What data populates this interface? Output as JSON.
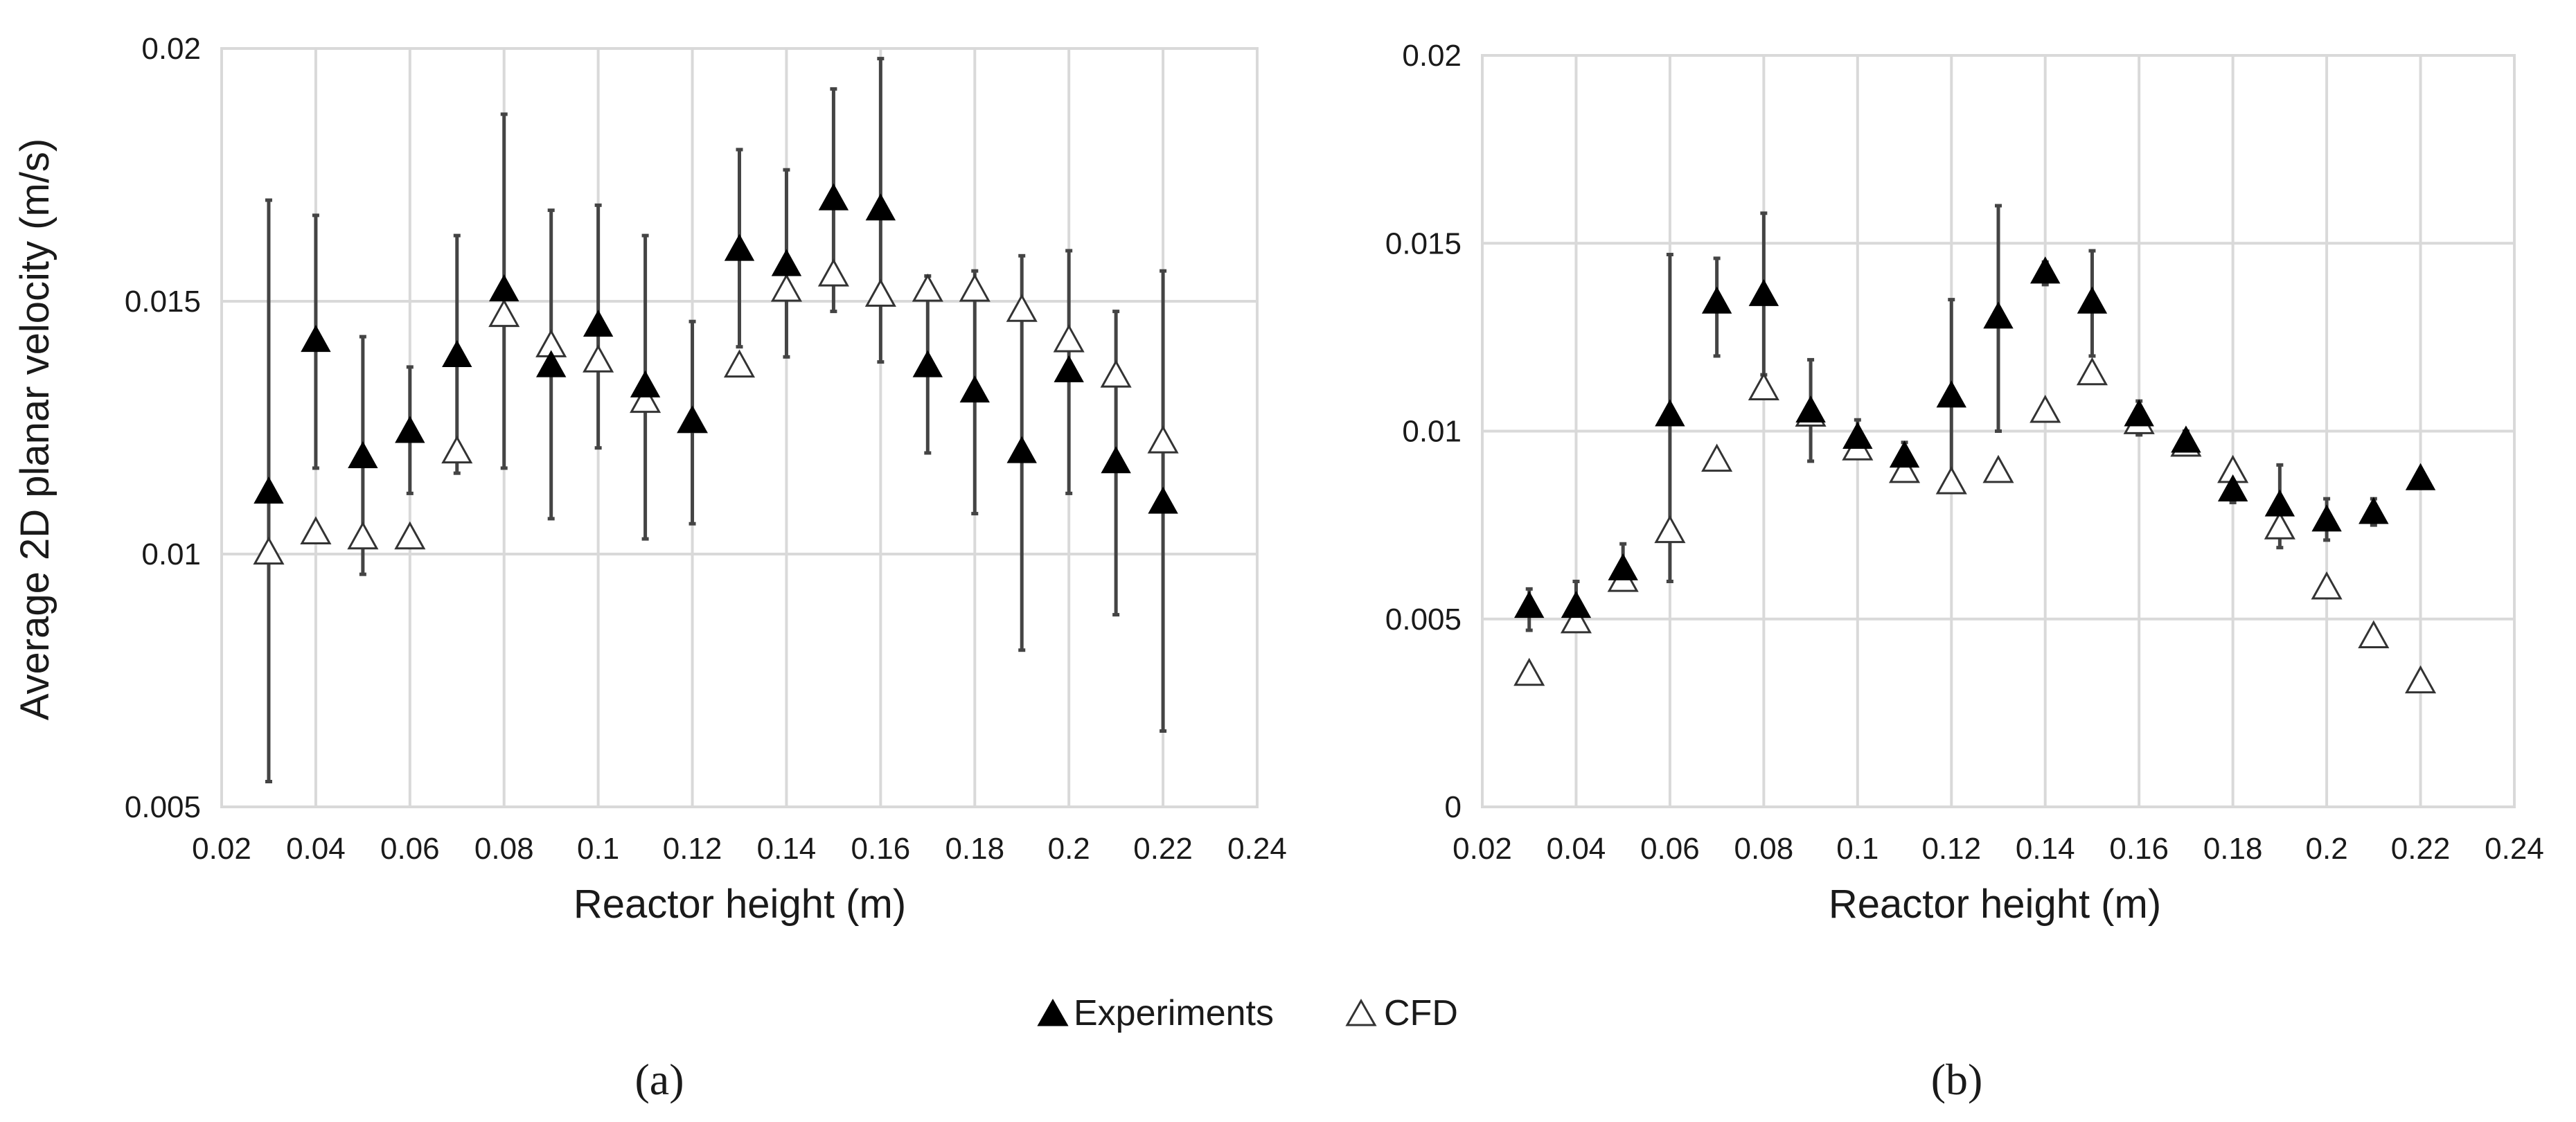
{
  "legend": {
    "experiments": "Experiments",
    "cfd": "CFD"
  },
  "panel_labels": {
    "a": "(a)",
    "b": "(b)"
  },
  "chart_data": [
    {
      "id": "a",
      "type": "scatter",
      "title": "",
      "xlabel": "Reactor height (m)",
      "ylabel": "Average 2D planar velocity (m/s)",
      "xlim": [
        0.02,
        0.24
      ],
      "ylim": [
        0.005,
        0.02
      ],
      "xticks": [
        0.02,
        0.04,
        0.06,
        0.08,
        0.1,
        0.12,
        0.14,
        0.16,
        0.18,
        0.2,
        0.22,
        0.24
      ],
      "xtick_labels": [
        "0.02",
        "0.04",
        "0.06",
        "0.08",
        "0.1",
        "0.12",
        "0.14",
        "0.16",
        "0.18",
        "0.2",
        "0.22",
        "0.24"
      ],
      "yticks": [
        0.005,
        0.01,
        0.015,
        0.02
      ],
      "ytick_labels": [
        "0.005",
        "0.01",
        "0.015",
        "0.02"
      ],
      "grid": true,
      "x": [
        0.03,
        0.04,
        0.05,
        0.06,
        0.07,
        0.08,
        0.09,
        0.1,
        0.11,
        0.12,
        0.13,
        0.14,
        0.15,
        0.16,
        0.17,
        0.18,
        0.19,
        0.2,
        0.21,
        0.22
      ],
      "series": [
        {
          "name": "Experiments",
          "marker": "filled-triangle",
          "values": [
            0.0112,
            0.0142,
            0.0119,
            0.0124,
            0.0139,
            0.0152,
            0.0137,
            0.0145,
            0.0133,
            0.0126,
            0.016,
            0.0157,
            0.017,
            0.0168,
            0.0137,
            0.0132,
            0.012,
            0.0136,
            0.0118,
            0.011
          ],
          "err_low": [
            0.0055,
            0.0117,
            0.0096,
            0.0112,
            0.0116,
            0.0117,
            0.0107,
            0.0121,
            0.0103,
            0.0106,
            0.0141,
            0.0139,
            0.0148,
            0.0138,
            0.012,
            0.0108,
            0.0081,
            0.0112,
            0.0088,
            0.0065
          ],
          "err_high": [
            0.017,
            0.0167,
            0.0143,
            0.0137,
            0.0163,
            0.0187,
            0.0168,
            0.0169,
            0.0163,
            0.0146,
            0.018,
            0.0176,
            0.0192,
            0.0198,
            0.0155,
            0.0156,
            0.0159,
            0.016,
            0.0148,
            0.0156
          ]
        },
        {
          "name": "CFD",
          "marker": "open-triangle",
          "values": [
            0.01,
            0.0104,
            0.0103,
            0.0103,
            0.012,
            0.0147,
            0.0141,
            0.0138,
            0.013,
            0.0126,
            0.0137,
            0.0152,
            0.0155,
            0.0151,
            0.0152,
            0.0152,
            0.0148,
            0.0142,
            0.0135,
            0.0122
          ]
        }
      ]
    },
    {
      "id": "b",
      "type": "scatter",
      "title": "",
      "xlabel": "Reactor height (m)",
      "ylabel": "",
      "xlim": [
        0.02,
        0.24
      ],
      "ylim": [
        0,
        0.02
      ],
      "xticks": [
        0.02,
        0.04,
        0.06,
        0.08,
        0.1,
        0.12,
        0.14,
        0.16,
        0.18,
        0.2,
        0.22,
        0.24
      ],
      "xtick_labels": [
        "0.02",
        "0.04",
        "0.06",
        "0.08",
        "0.1",
        "0.12",
        "0.14",
        "0.16",
        "0.18",
        "0.2",
        "0.22",
        "0.24"
      ],
      "yticks": [
        0,
        0.005,
        0.01,
        0.015,
        0.02
      ],
      "ytick_labels": [
        "0",
        "0.005",
        "0.01",
        "0.015",
        "0.02"
      ],
      "grid": true,
      "x": [
        0.03,
        0.04,
        0.05,
        0.06,
        0.07,
        0.08,
        0.09,
        0.1,
        0.11,
        0.12,
        0.13,
        0.14,
        0.15,
        0.16,
        0.17,
        0.18,
        0.19,
        0.2,
        0.21,
        0.22
      ],
      "series": [
        {
          "name": "Experiments",
          "marker": "filled-triangle",
          "values": [
            0.0053,
            0.0053,
            0.0063,
            0.0104,
            0.0134,
            0.0136,
            0.0105,
            0.0098,
            0.0093,
            0.0109,
            0.013,
            0.0142,
            0.0134,
            0.0104,
            0.0097,
            0.0084,
            0.008,
            0.0076,
            0.0078,
            0.0087
          ],
          "err_low": [
            0.0047,
            0.0047,
            0.0058,
            0.006,
            0.012,
            0.0115,
            0.0092,
            0.0093,
            0.0089,
            0.0084,
            0.01,
            0.0139,
            0.012,
            0.0099,
            0.0094,
            0.0081,
            0.0069,
            0.0071,
            0.0075,
            0.0085
          ],
          "err_high": [
            0.0058,
            0.006,
            0.007,
            0.0147,
            0.0146,
            0.0158,
            0.0119,
            0.0103,
            0.0097,
            0.0135,
            0.016,
            0.0145,
            0.0148,
            0.0108,
            0.01,
            0.0087,
            0.0091,
            0.0082,
            0.0082,
            0.0089
          ]
        },
        {
          "name": "CFD",
          "marker": "open-triangle",
          "values": [
            0.0035,
            0.0049,
            0.006,
            0.0073,
            0.0092,
            0.0111,
            0.0104,
            0.0095,
            0.0089,
            0.0086,
            0.0089,
            0.0105,
            0.0115,
            0.0102,
            0.0096,
            0.0089,
            0.0074,
            0.0058,
            0.0045,
            0.0033
          ]
        }
      ]
    }
  ]
}
